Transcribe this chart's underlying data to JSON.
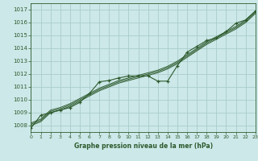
{
  "title": "Graphe pression niveau de la mer (hPa)",
  "bg_color": "#cce8e8",
  "grid_color": "#aacccc",
  "line_color": "#2d5a2d",
  "x_min": 0,
  "x_max": 23,
  "y_min": 1007.5,
  "y_max": 1017.5,
  "y_ticks": [
    1008,
    1009,
    1010,
    1011,
    1012,
    1013,
    1014,
    1015,
    1016,
    1017
  ],
  "series": [
    {
      "x": [
        0,
        1,
        2,
        3,
        4,
        5,
        6,
        7,
        8,
        9,
        10,
        11,
        12,
        13,
        14,
        15,
        16,
        17,
        18,
        19,
        20,
        21,
        22,
        23
      ],
      "y": [
        1008.0,
        1008.3,
        1009.0,
        1009.2,
        1009.5,
        1009.9,
        1010.3,
        1010.7,
        1011.0,
        1011.3,
        1011.5,
        1011.7,
        1011.9,
        1012.1,
        1012.4,
        1012.8,
        1013.3,
        1013.8,
        1014.3,
        1014.7,
        1015.1,
        1015.5,
        1016.0,
        1016.7
      ],
      "has_markers": false
    },
    {
      "x": [
        0,
        1,
        2,
        3,
        4,
        5,
        6,
        7,
        8,
        9,
        10,
        11,
        12,
        13,
        14,
        15,
        16,
        17,
        18,
        19,
        20,
        21,
        22,
        23
      ],
      "y": [
        1008.1,
        1008.4,
        1009.1,
        1009.3,
        1009.6,
        1010.0,
        1010.4,
        1010.8,
        1011.1,
        1011.4,
        1011.6,
        1011.8,
        1012.0,
        1012.2,
        1012.5,
        1012.9,
        1013.4,
        1013.9,
        1014.4,
        1014.8,
        1015.2,
        1015.6,
        1016.1,
        1016.8
      ],
      "has_markers": false
    },
    {
      "x": [
        0,
        1,
        2,
        3,
        4,
        5,
        6,
        7,
        8,
        9,
        10,
        11,
        12,
        13,
        14,
        15,
        16,
        17,
        18,
        19,
        20,
        21,
        22,
        23
      ],
      "y": [
        1008.2,
        1008.5,
        1009.2,
        1009.4,
        1009.7,
        1010.1,
        1010.5,
        1010.9,
        1011.2,
        1011.5,
        1011.7,
        1011.9,
        1012.1,
        1012.3,
        1012.6,
        1013.0,
        1013.5,
        1014.0,
        1014.5,
        1014.9,
        1015.3,
        1015.7,
        1016.2,
        1016.9
      ],
      "has_markers": false
    },
    {
      "x": [
        0,
        1,
        2,
        3,
        4,
        5,
        6,
        7,
        8,
        9,
        10,
        11,
        12,
        13,
        14,
        15,
        16,
        17,
        18,
        19,
        20,
        21,
        22,
        23
      ],
      "y": [
        1007.8,
        1008.8,
        1009.0,
        1009.2,
        1009.4,
        1009.8,
        1010.5,
        1011.4,
        1011.5,
        1011.7,
        1011.85,
        1011.85,
        1011.85,
        1011.45,
        1011.45,
        1012.65,
        1013.7,
        1014.15,
        1014.6,
        1014.8,
        1015.3,
        1015.95,
        1016.2,
        1016.9
      ],
      "has_markers": true
    }
  ]
}
